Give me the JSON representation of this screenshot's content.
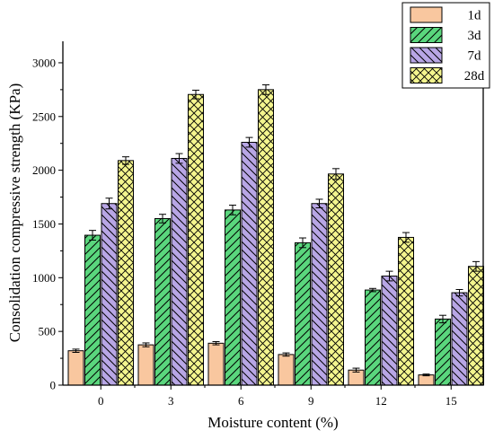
{
  "chart_data": {
    "type": "bar",
    "categories": [
      "0",
      "3",
      "6",
      "9",
      "12",
      "15"
    ],
    "series": [
      {
        "name": "1d",
        "values": [
          320,
          375,
          390,
          285,
          140,
          95
        ],
        "errors": [
          15,
          18,
          15,
          15,
          18,
          8
        ],
        "color": "#f9c79f",
        "pattern": "none"
      },
      {
        "name": "3d",
        "values": [
          1395,
          1550,
          1630,
          1325,
          885,
          615
        ],
        "errors": [
          45,
          40,
          45,
          45,
          15,
          35
        ],
        "color": "#5ad67d",
        "pattern": "forward-diagonal"
      },
      {
        "name": "7d",
        "values": [
          1690,
          2110,
          2260,
          1690,
          1015,
          860
        ],
        "errors": [
          50,
          45,
          45,
          40,
          45,
          30
        ],
        "color": "#b8a6e5",
        "pattern": "back-diagonal"
      },
      {
        "name": "28d",
        "values": [
          2090,
          2705,
          2750,
          1965,
          1375,
          1105
        ],
        "errors": [
          35,
          40,
          45,
          50,
          45,
          45
        ],
        "color": "#f4f58e",
        "pattern": "crosshatch"
      }
    ],
    "xlabel": "Moisture content (%)",
    "ylabel": "Consolidation compressive strength (KPa)",
    "ylim": [
      0,
      3200
    ],
    "yticks": [
      "0",
      "500",
      "1000",
      "1500",
      "2000",
      "2500",
      "3000"
    ],
    "grid": false,
    "legend": "top-right"
  }
}
